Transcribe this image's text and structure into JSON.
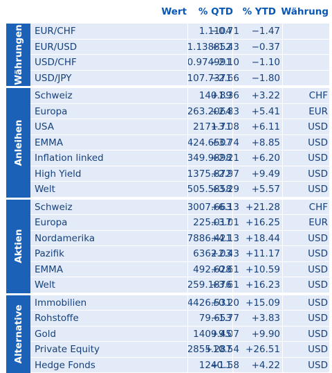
{
  "headers": {
    "wert": "Wert",
    "qtd": "% QTD",
    "ytd": "% YTD",
    "waehrung": "Währung"
  },
  "groups": [
    {
      "label": "Währungen",
      "rows": [
        {
          "name": "EUR/CHF",
          "wert": "1.1104",
          "qtd": "−0.71",
          "ytd": "−1.47",
          "waehrung": ""
        },
        {
          "name": "EUR/USD",
          "wert": "1.138852",
          "qtd": "+1.43",
          "ytd": "−0.37",
          "waehrung": ""
        },
        {
          "name": "USD/CHF",
          "wert": "0.974991",
          "qtd": "−2.10",
          "ytd": "−1.10",
          "waehrung": ""
        },
        {
          "name": "USD/JPY",
          "wert": "107.7371",
          "qtd": "−2.66",
          "ytd": "−1.80",
          "waehrung": ""
        }
      ]
    },
    {
      "label": "Anleihen",
      "rows": [
        {
          "name": "Schweiz",
          "wert": "140.89",
          "qtd": "+1.36",
          "ytd": "+3.22",
          "waehrung": "CHF"
        },
        {
          "name": "Europa",
          "wert": "263.2064",
          "qtd": "+2.83",
          "ytd": "+5.41",
          "waehrung": "EUR"
        },
        {
          "name": "USA",
          "wert": "2171.71",
          "qtd": "+3.08",
          "ytd": "+6.11",
          "waehrung": "USD"
        },
        {
          "name": "EMMA",
          "wert": "424.6507",
          "qtd": "+3.74",
          "ytd": "+8.85",
          "waehrung": "USD"
        },
        {
          "name": "Inflation linked",
          "wert": "349.9898",
          "qtd": "+2.21",
          "ytd": "+6.20",
          "waehrung": "USD"
        },
        {
          "name": "High Yield",
          "wert": "1375.872",
          "qtd": "+2.97",
          "ytd": "+9.49",
          "waehrung": "USD"
        },
        {
          "name": "Welt",
          "wert": "505.5858",
          "qtd": "+3.29",
          "ytd": "+5.57",
          "waehrung": "USD"
        }
      ]
    },
    {
      "label": "Aktien",
      "rows": [
        {
          "name": "Schweiz",
          "wert": "3007.663",
          "qtd": "+6.13",
          "ytd": "+21.28",
          "waehrung": "CHF"
        },
        {
          "name": "Europa",
          "wert": "225.017",
          "qtd": "+3.01",
          "ytd": "+16.25",
          "waehrung": "EUR"
        },
        {
          "name": "Nordamerika",
          "wert": "7886.421",
          "qtd": "+4.13",
          "ytd": "+18.44",
          "waehrung": "USD"
        },
        {
          "name": "Pazifik",
          "wert": "6362.03",
          "qtd": "+2.43",
          "ytd": "+11.17",
          "waehrung": "USD"
        },
        {
          "name": "EMMA",
          "wert": "492.628",
          "qtd": "+0.61",
          "ytd": "+10.59",
          "waehrung": "USD"
        },
        {
          "name": "Welt",
          "wert": "259.1876",
          "qtd": "+3.61",
          "ytd": "+16.23",
          "waehrung": "USD"
        }
      ]
    },
    {
      "label": "Alternative",
      "rows": [
        {
          "name": "Immobilien",
          "wert": "4426.531",
          "qtd": "+0.20",
          "ytd": "+15.09",
          "waehrung": "USD"
        },
        {
          "name": "Rohstoffe",
          "wert": "79.653",
          "qtd": "−1.77",
          "ytd": "+3.83",
          "waehrung": "USD"
        },
        {
          "name": "Gold",
          "wert": "1409.45",
          "qtd": "+9.07",
          "ytd": "+9.90",
          "waehrung": "USD"
        },
        {
          "name": "Private Equity",
          "wert": "2855.287",
          "qtd": "+10.54",
          "ytd": "+26.51",
          "waehrung": "USD"
        },
        {
          "name": "Hedge Fonds",
          "wert": "1240.1",
          "qtd": "+1.58",
          "ytd": "+4.22",
          "waehrung": "USD"
        }
      ]
    }
  ]
}
